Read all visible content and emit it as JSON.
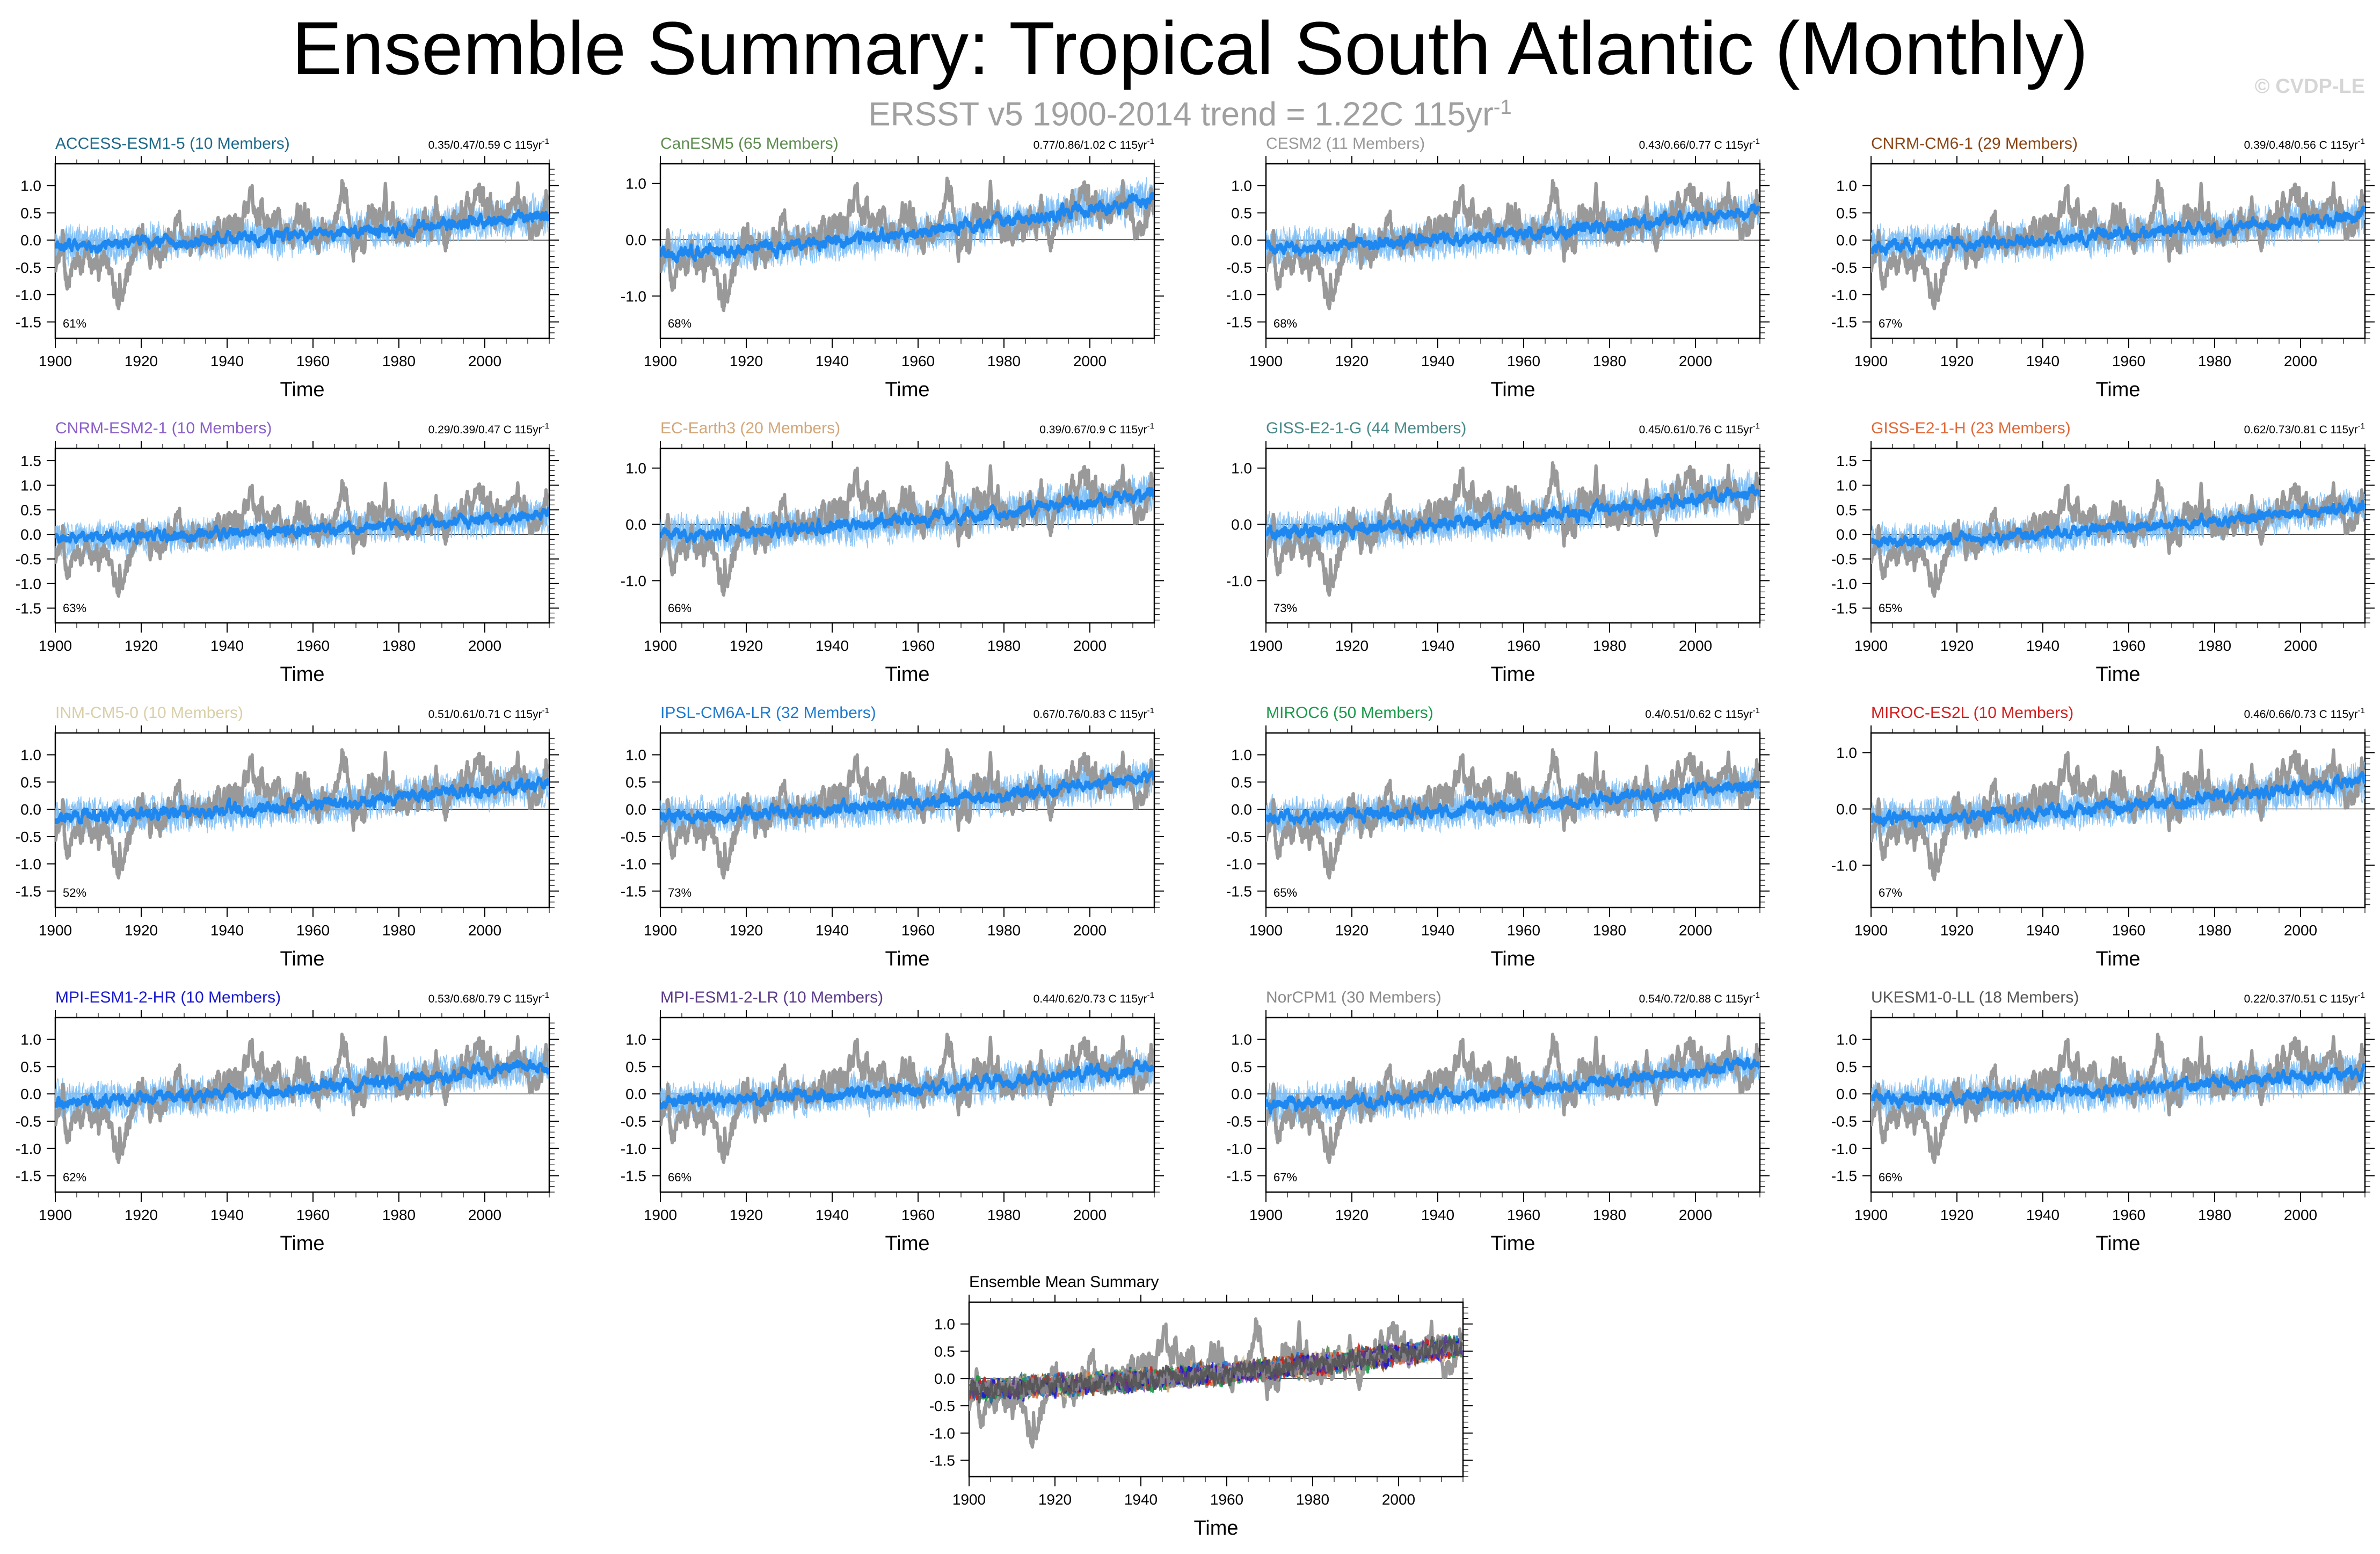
{
  "title": "Ensemble Summary: Tropical South Atlantic (Monthly)",
  "subtitle": "ERSST v5 1900-2014 trend = 1.22C 115yr",
  "subtitle_exp": "-1",
  "copyright": "© CVDP-LE",
  "colors": {
    "obs": "#999999",
    "ens_member": "#8cc4f5",
    "ens_mean": "#1e88f0"
  },
  "chart_data": [
    {
      "type": "line",
      "name": "ACCESS-ESM1-5 (10 Members)",
      "color": "#1e6a8a",
      "stats": "0.35/0.47/0.59 C 115yr",
      "stats_exp": "-1",
      "pct": "61%",
      "yticks": [
        "1.0",
        "0.5",
        "0.0",
        "-0.5",
        "-1.0",
        "-1.5"
      ],
      "ytickvals": [
        1.0,
        0.5,
        0.0,
        -0.5,
        -1.0,
        -1.5
      ],
      "ylim": [
        -1.8,
        1.4
      ],
      "xlim": [
        1900,
        2015
      ],
      "xticks": [
        "1900",
        "1920",
        "1940",
        "1960",
        "1980",
        "2000"
      ],
      "xlabel": "Time",
      "trend": [
        -0.1,
        0.45
      ]
    },
    {
      "type": "line",
      "name": "CanESM5 (65 Members)",
      "color": "#5e8c4f",
      "stats": "0.77/0.86/1.02 C 115yr",
      "stats_exp": "-1",
      "pct": "68%",
      "yticks": [
        "1.0",
        "0.0",
        "-1.0"
      ],
      "ytickvals": [
        1.0,
        0.0,
        -1.0
      ],
      "ylim": [
        -1.75,
        1.35
      ],
      "xlim": [
        1900,
        2015
      ],
      "xticks": [
        "1900",
        "1920",
        "1940",
        "1960",
        "1980",
        "2000"
      ],
      "xlabel": "Time",
      "trend": [
        -0.25,
        0.75
      ]
    },
    {
      "type": "line",
      "name": "CESM2 (11 Members)",
      "color": "#999999",
      "stats": "0.43/0.66/0.77 C 115yr",
      "stats_exp": "-1",
      "pct": "68%",
      "yticks": [
        "1.0",
        "0.5",
        "0.0",
        "-0.5",
        "-1.0",
        "-1.5"
      ],
      "ytickvals": [
        1.0,
        0.5,
        0.0,
        -0.5,
        -1.0,
        -1.5
      ],
      "ylim": [
        -1.8,
        1.4
      ],
      "xlim": [
        1900,
        2015
      ],
      "xticks": [
        "1900",
        "1920",
        "1940",
        "1960",
        "1980",
        "2000"
      ],
      "xlabel": "Time",
      "trend": [
        -0.15,
        0.55
      ]
    },
    {
      "type": "line",
      "name": "CNRM-CM6-1 (29 Members)",
      "color": "#8b4513",
      "stats": "0.39/0.48/0.56 C 115yr",
      "stats_exp": "-1",
      "pct": "67%",
      "yticks": [
        "1.0",
        "0.5",
        "0.0",
        "-0.5",
        "-1.0",
        "-1.5"
      ],
      "ytickvals": [
        1.0,
        0.5,
        0.0,
        -0.5,
        -1.0,
        -1.5
      ],
      "ylim": [
        -1.8,
        1.4
      ],
      "xlim": [
        1900,
        2015
      ],
      "xticks": [
        "1900",
        "1920",
        "1940",
        "1960",
        "1980",
        "2000"
      ],
      "xlabel": "Time",
      "trend": [
        -0.1,
        0.45
      ]
    },
    {
      "type": "line",
      "name": "CNRM-ESM2-1 (10 Members)",
      "color": "#8a5fc8",
      "stats": "0.29/0.39/0.47 C 115yr",
      "stats_exp": "-1",
      "pct": "63%",
      "yticks": [
        "1.5",
        "1.0",
        "0.5",
        "0.0",
        "-0.5",
        "-1.0",
        "-1.5"
      ],
      "ytickvals": [
        1.5,
        1.0,
        0.5,
        0.0,
        -0.5,
        -1.0,
        -1.5
      ],
      "ylim": [
        -1.8,
        1.75
      ],
      "xlim": [
        1900,
        2015
      ],
      "xticks": [
        "1900",
        "1920",
        "1940",
        "1960",
        "1980",
        "2000"
      ],
      "xlabel": "Time",
      "trend": [
        -0.1,
        0.4
      ]
    },
    {
      "type": "line",
      "name": "EC-Earth3 (20 Members)",
      "color": "#d2a679",
      "stats": "0.39/0.67/0.9 C 115yr",
      "stats_exp": "-1",
      "pct": "66%",
      "yticks": [
        "1.0",
        "0.0",
        "-1.0"
      ],
      "ytickvals": [
        1.0,
        0.0,
        -1.0
      ],
      "ylim": [
        -1.75,
        1.35
      ],
      "xlim": [
        1900,
        2015
      ],
      "xticks": [
        "1900",
        "1920",
        "1940",
        "1960",
        "1980",
        "2000"
      ],
      "xlabel": "Time",
      "trend": [
        -0.2,
        0.55
      ]
    },
    {
      "type": "line",
      "name": "GISS-E2-1-G (44 Members)",
      "color": "#4a8a8a",
      "stats": "0.45/0.61/0.76 C 115yr",
      "stats_exp": "-1",
      "pct": "73%",
      "yticks": [
        "1.0",
        "0.0",
        "-1.0"
      ],
      "ytickvals": [
        1.0,
        0.0,
        -1.0
      ],
      "ylim": [
        -1.75,
        1.35
      ],
      "xlim": [
        1900,
        2015
      ],
      "xticks": [
        "1900",
        "1920",
        "1940",
        "1960",
        "1980",
        "2000"
      ],
      "xlabel": "Time",
      "trend": [
        -0.15,
        0.6
      ]
    },
    {
      "type": "line",
      "name": "GISS-E2-1-H (23 Members)",
      "color": "#e06a3a",
      "stats": "0.62/0.73/0.81 C 115yr",
      "stats_exp": "-1",
      "pct": "65%",
      "yticks": [
        "1.5",
        "1.0",
        "0.5",
        "0.0",
        "-0.5",
        "-1.0",
        "-1.5"
      ],
      "ytickvals": [
        1.5,
        1.0,
        0.5,
        0.0,
        -0.5,
        -1.0,
        -1.5
      ],
      "ylim": [
        -1.8,
        1.75
      ],
      "xlim": [
        1900,
        2015
      ],
      "xticks": [
        "1900",
        "1920",
        "1940",
        "1960",
        "1980",
        "2000"
      ],
      "xlabel": "Time",
      "trend": [
        -0.15,
        0.6
      ]
    },
    {
      "type": "line",
      "name": "INM-CM5-0 (10 Members)",
      "color": "#d9cfa8",
      "stats": "0.51/0.61/0.71 C 115yr",
      "stats_exp": "-1",
      "pct": "52%",
      "yticks": [
        "1.0",
        "0.5",
        "0.0",
        "-0.5",
        "-1.0",
        "-1.5"
      ],
      "ytickvals": [
        1.0,
        0.5,
        0.0,
        -0.5,
        -1.0,
        -1.5
      ],
      "ylim": [
        -1.8,
        1.4
      ],
      "xlim": [
        1900,
        2015
      ],
      "xticks": [
        "1900",
        "1920",
        "1940",
        "1960",
        "1980",
        "2000"
      ],
      "xlabel": "Time",
      "trend": [
        -0.15,
        0.5
      ]
    },
    {
      "type": "line",
      "name": "IPSL-CM6A-LR (32 Members)",
      "color": "#1e7ad0",
      "stats": "0.67/0.76/0.83 C 115yr",
      "stats_exp": "-1",
      "pct": "73%",
      "yticks": [
        "1.0",
        "0.5",
        "0.0",
        "-0.5",
        "-1.0",
        "-1.5"
      ],
      "ytickvals": [
        1.0,
        0.5,
        0.0,
        -0.5,
        -1.0,
        -1.5
      ],
      "ylim": [
        -1.8,
        1.4
      ],
      "xlim": [
        1900,
        2015
      ],
      "xticks": [
        "1900",
        "1920",
        "1940",
        "1960",
        "1980",
        "2000"
      ],
      "xlabel": "Time",
      "trend": [
        -0.15,
        0.6
      ]
    },
    {
      "type": "line",
      "name": "MIROC6 (50 Members)",
      "color": "#1a9a4a",
      "stats": "0.4/0.51/0.62 C 115yr",
      "stats_exp": "-1",
      "pct": "65%",
      "yticks": [
        "1.0",
        "0.5",
        "0.0",
        "-0.5",
        "-1.0",
        "-1.5"
      ],
      "ytickvals": [
        1.0,
        0.5,
        0.0,
        -0.5,
        -1.0,
        -1.5
      ],
      "ylim": [
        -1.8,
        1.4
      ],
      "xlim": [
        1900,
        2015
      ],
      "xticks": [
        "1900",
        "1920",
        "1940",
        "1960",
        "1980",
        "2000"
      ],
      "xlabel": "Time",
      "trend": [
        -0.15,
        0.45
      ]
    },
    {
      "type": "line",
      "name": "MIROC-ES2L (10 Members)",
      "color": "#d02020",
      "stats": "0.46/0.66/0.73 C 115yr",
      "stats_exp": "-1",
      "pct": "67%",
      "yticks": [
        "1.0",
        "0.0",
        "-1.0"
      ],
      "ytickvals": [
        1.0,
        0.0,
        -1.0
      ],
      "ylim": [
        -1.75,
        1.35
      ],
      "xlim": [
        1900,
        2015
      ],
      "xticks": [
        "1900",
        "1920",
        "1940",
        "1960",
        "1980",
        "2000"
      ],
      "xlabel": "Time",
      "trend": [
        -0.2,
        0.5
      ]
    },
    {
      "type": "line",
      "name": "MPI-ESM1-2-HR (10 Members)",
      "color": "#1a1ad0",
      "stats": "0.53/0.68/0.79 C 115yr",
      "stats_exp": "-1",
      "pct": "62%",
      "yticks": [
        "1.0",
        "0.5",
        "0.0",
        "-0.5",
        "-1.0",
        "-1.5"
      ],
      "ytickvals": [
        1.0,
        0.5,
        0.0,
        -0.5,
        -1.0,
        -1.5
      ],
      "ylim": [
        -1.8,
        1.4
      ],
      "xlim": [
        1900,
        2015
      ],
      "xticks": [
        "1900",
        "1920",
        "1940",
        "1960",
        "1980",
        "2000"
      ],
      "xlabel": "Time",
      "trend": [
        -0.15,
        0.55
      ]
    },
    {
      "type": "line",
      "name": "MPI-ESM1-2-LR (10 Members)",
      "color": "#5a3a8a",
      "stats": "0.44/0.62/0.73 C 115yr",
      "stats_exp": "-1",
      "pct": "66%",
      "yticks": [
        "1.0",
        "0.5",
        "0.0",
        "-0.5",
        "-1.0",
        "-1.5"
      ],
      "ytickvals": [
        1.0,
        0.5,
        0.0,
        -0.5,
        -1.0,
        -1.5
      ],
      "ylim": [
        -1.8,
        1.4
      ],
      "xlim": [
        1900,
        2015
      ],
      "xticks": [
        "1900",
        "1920",
        "1940",
        "1960",
        "1980",
        "2000"
      ],
      "xlabel": "Time",
      "trend": [
        -0.15,
        0.5
      ]
    },
    {
      "type": "line",
      "name": "NorCPM1 (30 Members)",
      "color": "#8a8a8a",
      "stats": "0.54/0.72/0.88 C 115yr",
      "stats_exp": "-1",
      "pct": "67%",
      "yticks": [
        "1.0",
        "0.5",
        "0.0",
        "-0.5",
        "-1.0",
        "-1.5"
      ],
      "ytickvals": [
        1.0,
        0.5,
        0.0,
        -0.5,
        -1.0,
        -1.5
      ],
      "ylim": [
        -1.8,
        1.4
      ],
      "xlim": [
        1900,
        2015
      ],
      "xticks": [
        "1900",
        "1920",
        "1940",
        "1960",
        "1980",
        "2000"
      ],
      "xlabel": "Time",
      "trend": [
        -0.2,
        0.55
      ]
    },
    {
      "type": "line",
      "name": "UKESM1-0-LL (18 Members)",
      "color": "#555555",
      "stats": "0.22/0.37/0.51 C 115yr",
      "stats_exp": "-1",
      "pct": "66%",
      "yticks": [
        "1.0",
        "0.5",
        "0.0",
        "-0.5",
        "-1.0",
        "-1.5"
      ],
      "ytickvals": [
        1.0,
        0.5,
        0.0,
        -0.5,
        -1.0,
        -1.5
      ],
      "ylim": [
        -1.8,
        1.4
      ],
      "xlim": [
        1900,
        2015
      ],
      "xticks": [
        "1900",
        "1920",
        "1940",
        "1960",
        "1980",
        "2000"
      ],
      "xlabel": "Time",
      "trend": [
        -0.1,
        0.4
      ]
    },
    {
      "type": "line",
      "name": "Ensemble Mean Summary",
      "color": "#000000",
      "stats": "",
      "stats_exp": "",
      "pct": "",
      "yticks": [
        "1.0",
        "0.5",
        "0.0",
        "-0.5",
        "-1.0",
        "-1.5"
      ],
      "ytickvals": [
        1.0,
        0.5,
        0.0,
        -0.5,
        -1.0,
        -1.5
      ],
      "ylim": [
        -1.8,
        1.4
      ],
      "xlim": [
        1900,
        2015
      ],
      "xticks": [
        "1900",
        "1920",
        "1940",
        "1960",
        "1980",
        "2000"
      ],
      "xlabel": "Time",
      "trend": [
        -0.2,
        0.6
      ],
      "summary": true
    }
  ]
}
